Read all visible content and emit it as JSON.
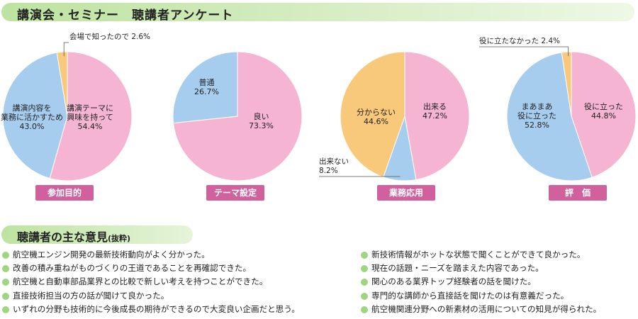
{
  "header": {
    "title": "講演会・セミナー　聴講者アンケート"
  },
  "chart_data": [
    {
      "type": "pie",
      "title": "参加目的",
      "slices": [
        {
          "label_lines": [
            "講演テーマに",
            "興味を持って"
          ],
          "value": 54.4,
          "value_text": "54.4%",
          "color": "#f5b5d2"
        },
        {
          "label_lines": [
            "講演内容を",
            "業務に活かすため"
          ],
          "value": 43.0,
          "value_text": "43.0%",
          "color": "#a7cdee"
        },
        {
          "label_lines": [
            "会場で知ったので"
          ],
          "value": 2.6,
          "value_text": "2.6%",
          "color": "#f8c87b"
        }
      ]
    },
    {
      "type": "pie",
      "title": "テーマ設定",
      "slices": [
        {
          "label_lines": [
            "良い"
          ],
          "value": 73.3,
          "value_text": "73.3%",
          "color": "#f5b5d2"
        },
        {
          "label_lines": [
            "普通"
          ],
          "value": 26.7,
          "value_text": "26.7%",
          "color": "#a7cdee"
        }
      ]
    },
    {
      "type": "pie",
      "title": "業務応用",
      "slices": [
        {
          "label_lines": [
            "出来る"
          ],
          "value": 47.2,
          "value_text": "47.2%",
          "color": "#f5b5d2"
        },
        {
          "label_lines": [
            "出来ない"
          ],
          "value": 8.2,
          "value_text": "8.2%",
          "color": "#a7cdee"
        },
        {
          "label_lines": [
            "分からない"
          ],
          "value": 44.6,
          "value_text": "44.6%",
          "color": "#f8c87b"
        }
      ]
    },
    {
      "type": "pie",
      "title": "評　価",
      "slices": [
        {
          "label_lines": [
            "役に立った"
          ],
          "value": 44.8,
          "value_text": "44.8%",
          "color": "#f5b5d2"
        },
        {
          "label_lines": [
            "まあまあ",
            "役に立った"
          ],
          "value": 52.8,
          "value_text": "52.8%",
          "color": "#a7cdee"
        },
        {
          "label_lines": [
            "役に立たなかった"
          ],
          "value": 2.4,
          "value_text": "2.4%",
          "color": "#f8c87b"
        }
      ]
    }
  ],
  "opinions": {
    "title": "聴講者の主な意見",
    "title_note": "(抜粋)",
    "left": [
      "航空機エンジン開発の最新技術動向がよく分かった。",
      "改善の積み重ねがものづくりの王道であることを再確認できた。",
      "航空機と自動車部品業界との比較で新しい考えを持つことができた。",
      "直接技術担当の方の話が聞けて良かった。",
      "いずれの分野も技術的に今後成長の期待ができるので大変良い企画だと思う。"
    ],
    "right": [
      "新技術情報がホットな状態で聞くことができて良かった。",
      "現在の話題・ニーズを踏まえた内容であった。",
      "関心のある業界トップ経験者の話を聞けた。",
      "専門的な講師から直接話を聞けたのは有意義だった。",
      "航空機関連分野への新素材の活用についての知見が得られた。"
    ]
  }
}
